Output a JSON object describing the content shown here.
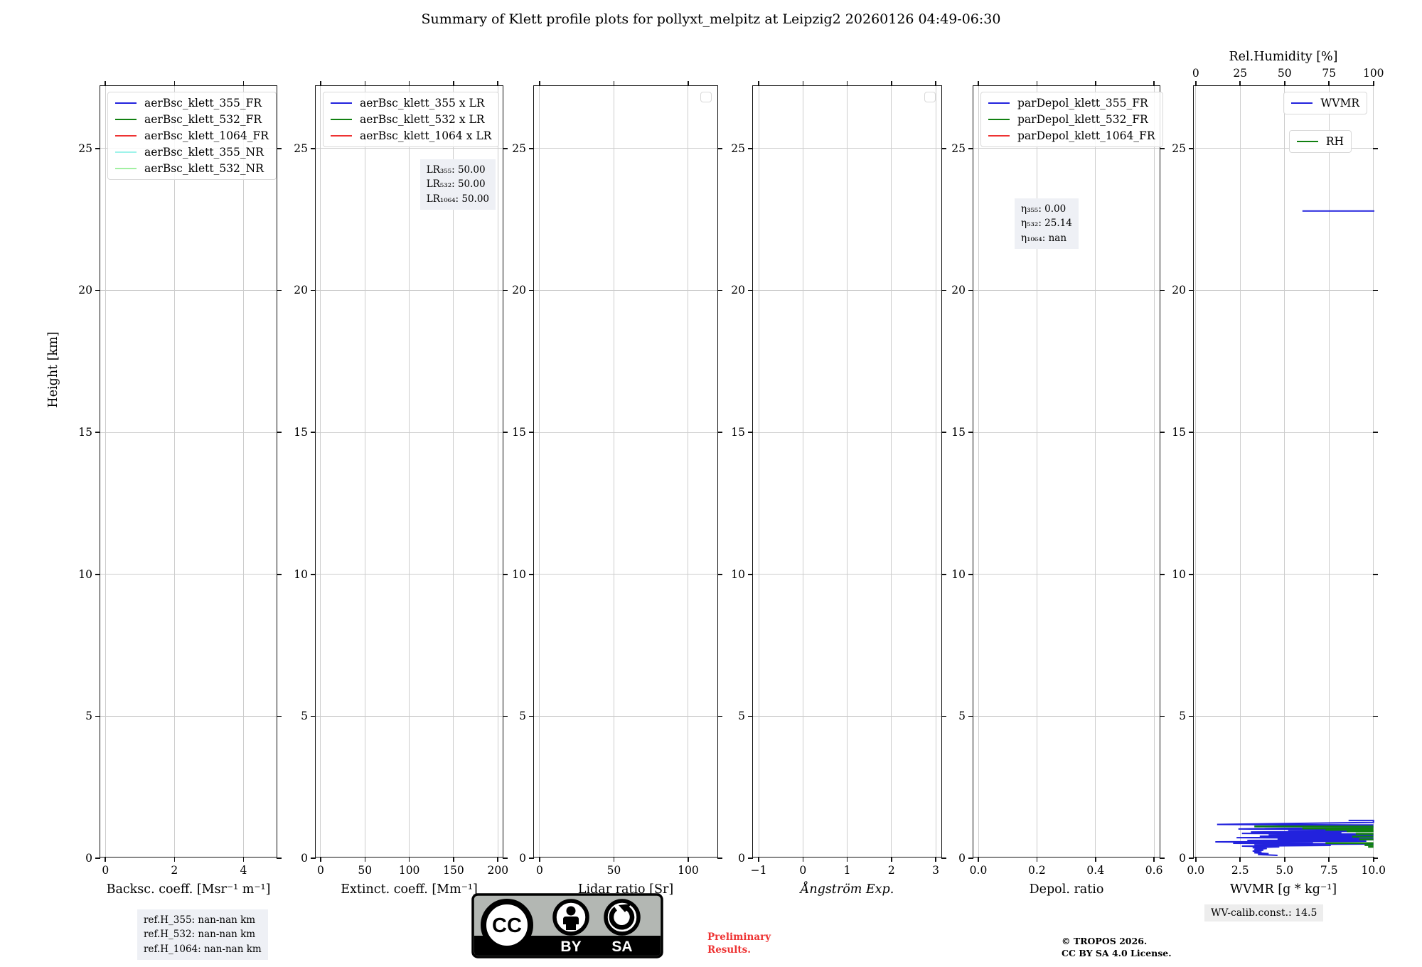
{
  "title": "Summary of Klett profile plots for pollyxt_melpitz at Leipzig2 20260126 04:49-06:30",
  "y_axis": {
    "label": "Height [km]",
    "min": 0,
    "max": 27.2,
    "ticks": [
      0,
      5,
      10,
      15,
      20,
      25
    ]
  },
  "plots": [
    {
      "id": "backscatter",
      "xlabel": "Backsc. coeff. [Msr⁻¹ m⁻¹]",
      "xmin": -0.15,
      "xmax": 5.0,
      "xticks": [
        {
          "v": 0,
          "t": "0"
        },
        {
          "v": 2,
          "t": "2"
        },
        {
          "v": 4,
          "t": "4"
        }
      ],
      "legend": {
        "kind": "items",
        "items": [
          {
            "label": "aerBsc_klett_355_FR",
            "color": "#2222dd"
          },
          {
            "label": "aerBsc_klett_532_FR",
            "color": "#118011"
          },
          {
            "label": "aerBsc_klett_1064_FR",
            "color": "#ee3333"
          },
          {
            "label": "aerBsc_klett_355_NR",
            "color": "#9ef3ea"
          },
          {
            "label": "aerBsc_klett_532_NR",
            "color": "#a2f0a2"
          }
        ]
      }
    },
    {
      "id": "extinction",
      "xlabel": "Extinct. coeff. [Mm⁻¹]",
      "xmin": -5.6,
      "xmax": 207,
      "xticks": [
        {
          "v": 0,
          "t": "0"
        },
        {
          "v": 50,
          "t": "50"
        },
        {
          "v": 100,
          "t": "100"
        },
        {
          "v": 150,
          "t": "150"
        },
        {
          "v": 200,
          "t": "200"
        }
      ],
      "legend": {
        "kind": "items",
        "items": [
          {
            "label": "aerBsc_klett_355 x LR",
            "color": "#2222dd"
          },
          {
            "label": "aerBsc_klett_532 x LR",
            "color": "#118011"
          },
          {
            "label": "aerBsc_klett_1064 x LR",
            "color": "#ee3333"
          }
        ]
      },
      "annotation": {
        "lines": [
          "LR₃₅₅: 50.00",
          "LR₅₃₂: 50.00",
          "LR₁₀₆₄: 50.00"
        ]
      }
    },
    {
      "id": "lidar_ratio",
      "xlabel": "Lidar ratio [Sr]",
      "xmin": -3.8,
      "xmax": 120.6,
      "xticks": [
        {
          "v": 0,
          "t": "0"
        },
        {
          "v": 50,
          "t": "50"
        },
        {
          "v": 100,
          "t": "100"
        }
      ],
      "legend": {
        "kind": "empty"
      }
    },
    {
      "id": "angstrom",
      "xlabel": "Ångström Exp.",
      "xlabel_italic": true,
      "xmin": -1.13,
      "xmax": 3.16,
      "xticks": [
        {
          "v": -1,
          "t": "−1"
        },
        {
          "v": 0,
          "t": "0"
        },
        {
          "v": 1,
          "t": "1"
        },
        {
          "v": 2,
          "t": "2"
        },
        {
          "v": 3,
          "t": "3"
        }
      ],
      "legend": {
        "kind": "empty"
      }
    },
    {
      "id": "depol",
      "xlabel": "Depol. ratio",
      "xmin": -0.017,
      "xmax": 0.624,
      "xticks": [
        {
          "v": 0,
          "t": "0.0"
        },
        {
          "v": 0.2,
          "t": "0.2"
        },
        {
          "v": 0.4,
          "t": "0.4"
        },
        {
          "v": 0.6,
          "t": "0.6"
        }
      ],
      "legend": {
        "kind": "items",
        "items": [
          {
            "label": "parDepol_klett_355_FR",
            "color": "#2222dd"
          },
          {
            "label": "parDepol_klett_532_FR",
            "color": "#118011"
          },
          {
            "label": "parDepol_klett_1064_FR",
            "color": "#ee3333"
          }
        ]
      },
      "annotation": {
        "lines": [
          "η₃₅₅: 0.00",
          "η₅₃₂: 25.14",
          "η₁₀₆₄: nan"
        ]
      }
    },
    {
      "id": "wvmr",
      "xlabel": "WVMR [g * kg⁻¹]",
      "xmin": -0.11,
      "xmax": 10.05,
      "xticks": [
        {
          "v": 0,
          "t": "0.0"
        },
        {
          "v": 2.5,
          "t": "2.5"
        },
        {
          "v": 5,
          "t": "5.0"
        },
        {
          "v": 7.5,
          "t": "7.5"
        },
        {
          "v": 10,
          "t": "10.0"
        }
      ],
      "top_axis": {
        "label": "Rel.Humidity [%]",
        "ticks": [
          {
            "v": 0,
            "t": "0"
          },
          {
            "v": 25,
            "t": "25"
          },
          {
            "v": 50,
            "t": "50"
          },
          {
            "v": 75,
            "t": "75"
          },
          {
            "v": 100,
            "t": "100"
          }
        ]
      },
      "legend": {
        "kind": "split",
        "items": [
          {
            "label": "WVMR",
            "color": "#2222dd"
          },
          {
            "label": "RH",
            "color": "#118011"
          }
        ]
      }
    }
  ],
  "chart_data": {
    "type": "line",
    "title": "Summary of Klett profile plots for pollyxt_melpitz at Leipzig2 20260126 04:49-06:30",
    "ylabel": "Height [km]",
    "ylim": [
      0,
      27.2
    ],
    "grid": true,
    "panels": [
      {
        "xlabel": "Backsc. coeff. [Msr⁻¹ m⁻¹]",
        "xlim": [
          -0.15,
          5.0
        ],
        "series_plotted": "none"
      },
      {
        "xlabel": "Extinct. coeff. [Mm⁻¹]",
        "xlim": [
          -5.6,
          207
        ],
        "series_plotted": "none",
        "annotations": [
          "LR₃₅₅: 50.00",
          "LR₅₃₂: 50.00",
          "LR₁₀₆₄: 50.00"
        ]
      },
      {
        "xlabel": "Lidar ratio [Sr]",
        "xlim": [
          -3.8,
          120.6
        ],
        "series_plotted": "none"
      },
      {
        "xlabel": "Ångström Exp.",
        "xlim": [
          -1.13,
          3.16
        ],
        "series_plotted": "none"
      },
      {
        "xlabel": "Depol. ratio",
        "xlim": [
          -0.017,
          0.624
        ],
        "series_plotted": "none",
        "annotations": [
          "η₃₅₅: 0.00",
          "η₅₃₂: 25.14",
          "η₁₀₆₄: nan"
        ]
      },
      {
        "xlabel": "WVMR [g * kg⁻¹]",
        "xlim": [
          0,
          10
        ],
        "top_xlabel": "Rel.Humidity [%]",
        "top_xlim": [
          0,
          100
        ],
        "series_plotted": "WVMR, RH"
      }
    ],
    "note": "Profile panels 1-5 contain no visible data curves; only the WVMR/RH panel shows data (noisy boundary-layer profile below ~1.3 km, clipped at x-max, plus one WVMR segment at ~22.8 km).",
    "series": [
      {
        "name": "WVMR",
        "panel": "wvmr",
        "axis": "bottom",
        "units": "g * kg⁻¹",
        "color": "#2222dd",
        "segments": [
          [
            [
              6.0,
              22.8
            ],
            [
              10.05,
              22.8
            ]
          ],
          [
            [
              8.6,
              1.33
            ],
            [
              10,
              1.33
            ],
            [
              10,
              1.26
            ],
            [
              1.2,
              1.19
            ],
            [
              10,
              1.17
            ],
            [
              3.4,
              1.12
            ],
            [
              10,
              1.1
            ],
            [
              2.4,
              1.03
            ],
            [
              9.0,
              1.01
            ],
            [
              5.2,
              0.975
            ],
            [
              10,
              0.95
            ],
            [
              3.1,
              0.925
            ],
            [
              8.2,
              0.9
            ],
            [
              2.6,
              0.875
            ],
            [
              10,
              0.85
            ],
            [
              4.1,
              0.825
            ],
            [
              10,
              0.8
            ],
            [
              3.6,
              0.775
            ],
            [
              9.2,
              0.75
            ],
            [
              2.3,
              0.725
            ],
            [
              10,
              0.7
            ],
            [
              4.6,
              0.675
            ],
            [
              10,
              0.65
            ],
            [
              2.9,
              0.625
            ],
            [
              9.6,
              0.6
            ],
            [
              1.1,
              0.575
            ],
            [
              6.6,
              0.55
            ],
            [
              2.1,
              0.525
            ],
            [
              10,
              0.5
            ],
            [
              3.3,
              0.475
            ],
            [
              7.6,
              0.45
            ],
            [
              2.6,
              0.425
            ],
            [
              4.7,
              0.4
            ],
            [
              3.2,
              0.37
            ],
            [
              4.0,
              0.34
            ],
            [
              3.3,
              0.31
            ],
            [
              3.8,
              0.28
            ],
            [
              3.2,
              0.25
            ],
            [
              3.7,
              0.22
            ],
            [
              3.3,
              0.19
            ],
            [
              4.1,
              0.16
            ],
            [
              3.5,
              0.13
            ],
            [
              4.6,
              0.1
            ]
          ]
        ]
      },
      {
        "name": "RH",
        "panel": "wvmr",
        "axis": "top",
        "units": "%",
        "color": "#118011",
        "segments": [
          [
            [
              33,
              1.12
            ],
            [
              100,
              1.12
            ]
          ],
          [
            [
              60,
              1.05
            ],
            [
              100,
              1.05
            ]
          ],
          [
            [
              73,
              1.0
            ],
            [
              100,
              1.0
            ]
          ],
          [
            [
              85,
              0.95
            ],
            [
              100,
              0.95
            ]
          ],
          [
            [
              90,
              0.86
            ],
            [
              100,
              0.86
            ]
          ],
          [
            [
              88,
              0.76
            ],
            [
              100,
              0.76
            ]
          ],
          [
            [
              92,
              0.66
            ],
            [
              100,
              0.66
            ]
          ],
          [
            [
              73,
              0.53
            ],
            [
              100,
              0.53
            ]
          ],
          [
            [
              95,
              0.46
            ],
            [
              100,
              0.46
            ]
          ],
          [
            [
              97,
              0.4
            ],
            [
              100,
              0.4
            ]
          ]
        ]
      }
    ]
  },
  "footer": {
    "ref_heights": [
      "ref.H_355: nan-nan km",
      "ref.H_532: nan-nan km",
      "ref.H_1064: nan-nan km"
    ],
    "cc_badge": {
      "cc": "CC",
      "by": "BY",
      "sa": "SA"
    },
    "preliminary": [
      "Preliminary",
      "Results."
    ],
    "copyright": [
      "© TROPOS 2026.",
      "CC BY SA 4.0 License."
    ],
    "wv_calib": "WV-calib.const.: 14.5"
  }
}
